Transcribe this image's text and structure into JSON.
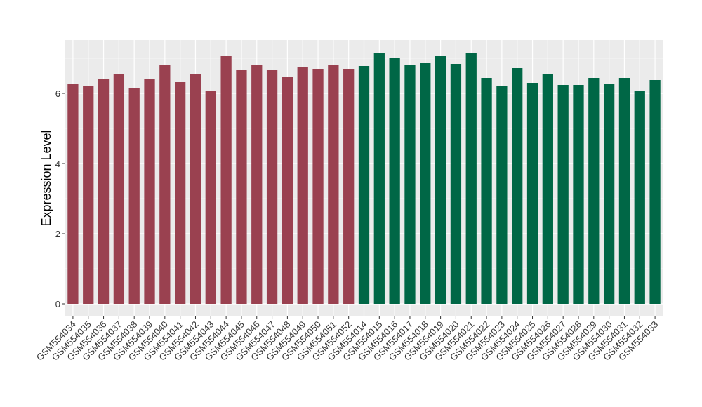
{
  "chart_data": {
    "type": "bar",
    "title": "",
    "xlabel": "",
    "ylabel": "Expression Level",
    "ylim": [
      -0.36,
      7.52
    ],
    "yticks": [
      0,
      2,
      4,
      6
    ],
    "grid": true,
    "colors": {
      "group1": "#9A4150",
      "group2": "#006746",
      "panel": "#EBEBEB",
      "grid": "#FFFFFF"
    },
    "categories": [
      "GSM554034",
      "GSM554035",
      "GSM554036",
      "GSM554037",
      "GSM554038",
      "GSM554039",
      "GSM554040",
      "GSM554041",
      "GSM554042",
      "GSM554043",
      "GSM554044",
      "GSM554045",
      "GSM554046",
      "GSM554047",
      "GSM554048",
      "GSM554049",
      "GSM554050",
      "GSM554051",
      "GSM554052",
      "GSM554014",
      "GSM554015",
      "GSM554016",
      "GSM554017",
      "GSM554018",
      "GSM554019",
      "GSM554020",
      "GSM554021",
      "GSM554022",
      "GSM554023",
      "GSM554024",
      "GSM554025",
      "GSM554026",
      "GSM554027",
      "GSM554028",
      "GSM554029",
      "GSM554030",
      "GSM554031",
      "GSM554032",
      "GSM554033"
    ],
    "values": [
      6.26,
      6.2,
      6.4,
      6.56,
      6.16,
      6.42,
      6.82,
      6.32,
      6.56,
      6.06,
      7.06,
      6.66,
      6.82,
      6.66,
      6.46,
      6.76,
      6.7,
      6.8,
      6.7,
      6.78,
      7.14,
      7.02,
      6.82,
      6.86,
      7.06,
      6.84,
      7.16,
      6.44,
      6.2,
      6.72,
      6.3,
      6.54,
      6.24,
      6.24,
      6.44,
      6.26,
      6.44,
      6.06,
      6.38
    ],
    "groups": [
      "group1",
      "group1",
      "group1",
      "group1",
      "group1",
      "group1",
      "group1",
      "group1",
      "group1",
      "group1",
      "group1",
      "group1",
      "group1",
      "group1",
      "group1",
      "group1",
      "group1",
      "group1",
      "group1",
      "group2",
      "group2",
      "group2",
      "group2",
      "group2",
      "group2",
      "group2",
      "group2",
      "group2",
      "group2",
      "group2",
      "group2",
      "group2",
      "group2",
      "group2",
      "group2",
      "group2",
      "group2",
      "group2",
      "group2"
    ]
  }
}
